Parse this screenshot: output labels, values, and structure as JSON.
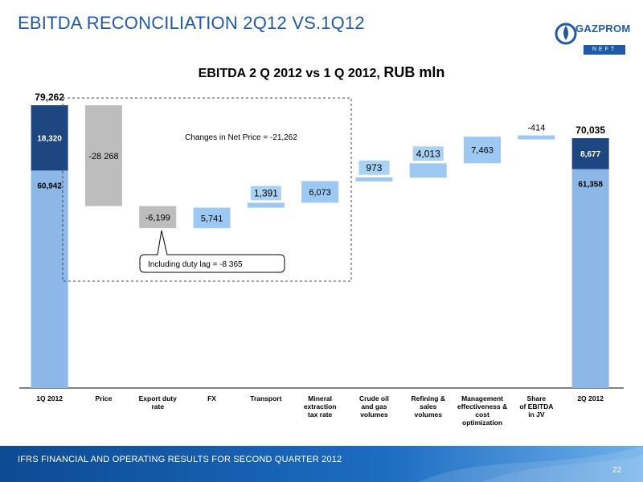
{
  "header": {
    "title": "EBITDA RECONCILIATION 2Q12 VS.1Q12",
    "logo_name": "GAZPROM",
    "logo_sub": "NEFT",
    "logo_icon": "gazprom-flame-logo"
  },
  "footer": {
    "text": "IFRS FINANCIAL AND OPERATING RESULTS FOR SECOND QUARTER 2012",
    "page_number": "22"
  },
  "colors": {
    "title_blue": "#1f5aa6",
    "bar_dark": "#1e4680",
    "bar_light": "#8cb7e6",
    "bar_gray": "#bdbdbd",
    "bar_step": "#9cc8f2"
  },
  "chart_data": {
    "type": "bar",
    "subtype": "waterfall",
    "title": "EBITDA  2 Q 2012 vs 1 Q 2012,",
    "title_unit": "RUB mln",
    "categories": [
      "1Q 2012",
      "Price",
      "Export duty\nrate",
      "FX",
      "Transport",
      "Mineral\nextraction\ntax rate",
      "Crude oil\nand gas\nvolumes",
      "Refining &\nsales\nvolumes",
      "Management\neffectiveness &\ncost\noptimization",
      "Share\nof EBITDA\nin JV",
      "2Q 2012"
    ],
    "start": {
      "category": "1Q 2012",
      "total": 79262,
      "total_label": "79,262",
      "segments": [
        {
          "value": 60942,
          "label": "60,942",
          "color": "bar_light"
        },
        {
          "value": 18320,
          "label": "18,320",
          "color": "bar_dark"
        }
      ]
    },
    "steps": [
      {
        "category": "Price",
        "value": -28268,
        "label": "-28 268",
        "color": "bar_gray"
      },
      {
        "category": "Export duty rate",
        "value": -6199,
        "label": "-6,199",
        "color": "bar_gray"
      },
      {
        "category": "FX",
        "value": 5741,
        "label": "5,741",
        "color": "bar_step"
      },
      {
        "category": "Transport",
        "value": 1391,
        "label": "1,391",
        "color": "bar_step"
      },
      {
        "category": "Mineral extraction tax rate",
        "value": 6073,
        "label": "6,073",
        "color": "bar_step"
      },
      {
        "category": "Crude oil and gas volumes",
        "value": 973,
        "label": "973",
        "color": "bar_step"
      },
      {
        "category": "Refining & sales volumes",
        "value": 4013,
        "label": "4,013",
        "color": "bar_step"
      },
      {
        "category": "Management effectiveness & cost optimization",
        "value": 7463,
        "label": "7,463",
        "color": "bar_step"
      },
      {
        "category": "Share of EBITDA in JV",
        "value": -414,
        "label": "-414",
        "color": "bar_step"
      }
    ],
    "end": {
      "category": "2Q 2012",
      "total": 70035,
      "total_label": "70,035",
      "segments": [
        {
          "value": 61358,
          "label": "61,358",
          "color": "bar_light"
        },
        {
          "value": 8677,
          "label": "8,677",
          "color": "bar_dark"
        }
      ]
    },
    "annotations": {
      "net_price": "Changes in Net Price = -21,262",
      "duty_lag": "Including duty lag = -8 365"
    },
    "ylim": [
      0,
      79262
    ]
  }
}
